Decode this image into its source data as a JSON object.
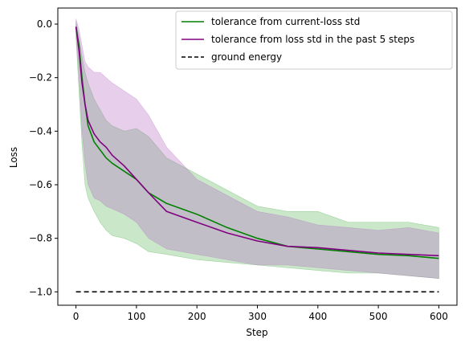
{
  "chart_data": {
    "type": "line",
    "title": "",
    "xlabel": "Step",
    "ylabel": "Loss",
    "xlim": [
      -30,
      630
    ],
    "ylim": [
      -1.05,
      0.06
    ],
    "xticks": [
      0,
      100,
      200,
      300,
      400,
      500,
      600
    ],
    "yticks": [
      0.0,
      -0.2,
      -0.4,
      -0.6,
      -0.8,
      -1.0
    ],
    "xtick_labels": [
      "0",
      "100",
      "200",
      "300",
      "400",
      "500",
      "600"
    ],
    "ytick_labels": [
      "0.0",
      "−0.2",
      "−0.4",
      "−0.6",
      "−0.8",
      "−1.0"
    ],
    "legend_position": "top-right",
    "colors": {
      "green": "#008000",
      "purple": "#800080",
      "black": "#000000",
      "green_band": "#2ca02c",
      "purple_band": "#b060c0"
    },
    "series": [
      {
        "name": "tolerance from current-loss std",
        "color": "#008000",
        "style": "solid",
        "x": [
          0,
          5,
          10,
          15,
          20,
          30,
          40,
          50,
          60,
          80,
          100,
          120,
          150,
          200,
          250,
          300,
          350,
          400,
          450,
          500,
          550,
          600
        ],
        "y": [
          -0.01,
          -0.08,
          -0.2,
          -0.3,
          -0.38,
          -0.44,
          -0.47,
          -0.5,
          -0.52,
          -0.55,
          -0.58,
          -0.63,
          -0.67,
          -0.71,
          -0.76,
          -0.8,
          -0.83,
          -0.84,
          -0.85,
          -0.86,
          -0.865,
          -0.875
        ],
        "band_upper": [
          0.01,
          -0.05,
          -0.12,
          -0.18,
          -0.22,
          -0.28,
          -0.32,
          -0.36,
          -0.38,
          -0.4,
          -0.39,
          -0.42,
          -0.5,
          -0.56,
          -0.62,
          -0.68,
          -0.7,
          -0.7,
          -0.74,
          -0.74,
          -0.74,
          -0.76
        ],
        "band_lower": [
          -0.05,
          -0.25,
          -0.45,
          -0.6,
          -0.65,
          -0.7,
          -0.74,
          -0.77,
          -0.79,
          -0.8,
          -0.82,
          -0.85,
          -0.86,
          -0.88,
          -0.89,
          -0.9,
          -0.91,
          -0.92,
          -0.93,
          -0.93,
          -0.94,
          -0.95
        ]
      },
      {
        "name": "tolerance from loss std in the past 5 steps",
        "color": "#800080",
        "style": "solid",
        "x": [
          0,
          5,
          10,
          15,
          20,
          30,
          40,
          50,
          60,
          80,
          100,
          120,
          150,
          200,
          250,
          300,
          350,
          400,
          450,
          500,
          550,
          600
        ],
        "y": [
          -0.01,
          -0.1,
          -0.22,
          -0.3,
          -0.36,
          -0.41,
          -0.44,
          -0.46,
          -0.49,
          -0.53,
          -0.58,
          -0.63,
          -0.7,
          -0.74,
          -0.78,
          -0.81,
          -0.83,
          -0.835,
          -0.845,
          -0.855,
          -0.86,
          -0.865
        ],
        "band_upper": [
          0.02,
          -0.02,
          -0.08,
          -0.14,
          -0.16,
          -0.18,
          -0.18,
          -0.2,
          -0.22,
          -0.25,
          -0.28,
          -0.34,
          -0.46,
          -0.58,
          -0.64,
          -0.7,
          -0.72,
          -0.75,
          -0.76,
          -0.77,
          -0.76,
          -0.78
        ],
        "band_lower": [
          -0.03,
          -0.2,
          -0.4,
          -0.52,
          -0.6,
          -0.65,
          -0.66,
          -0.68,
          -0.69,
          -0.71,
          -0.74,
          -0.8,
          -0.84,
          -0.86,
          -0.88,
          -0.9,
          -0.9,
          -0.91,
          -0.92,
          -0.93,
          -0.94,
          -0.95
        ]
      },
      {
        "name": "ground energy",
        "color": "#000000",
        "style": "dashed",
        "x": [
          0,
          600
        ],
        "y": [
          -1.0,
          -1.0
        ]
      }
    ]
  }
}
